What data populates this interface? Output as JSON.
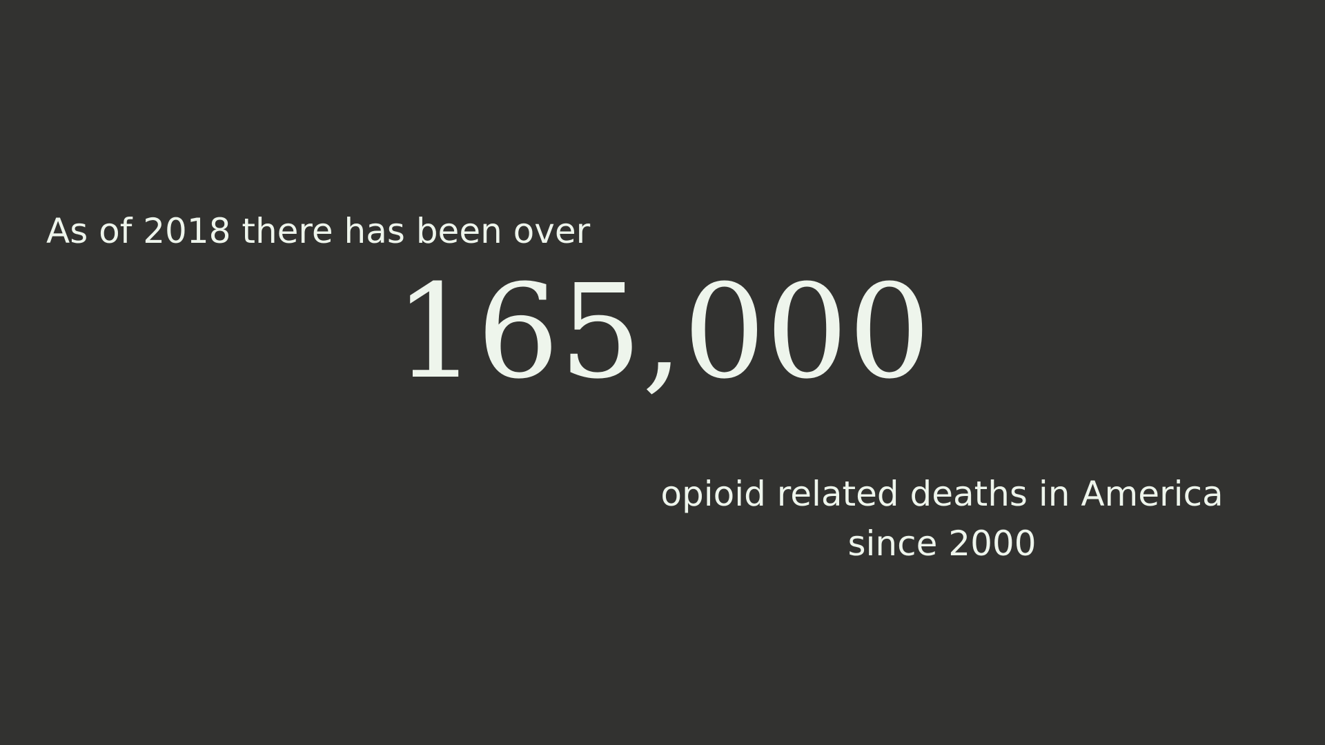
{
  "slide": {
    "lead_text": "As of 2018 there has been over",
    "big_number": "165,000",
    "tail_line1": "opioid related deaths in America",
    "tail_line2": "since 2000",
    "background_color": "#323230",
    "text_color": "#eef5ec"
  }
}
